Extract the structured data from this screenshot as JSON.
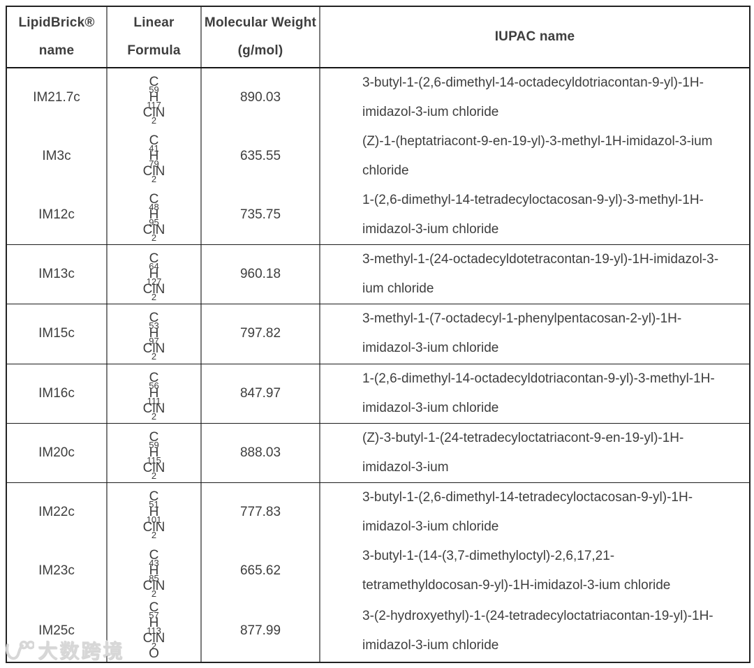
{
  "page": {
    "background": "#ffffff",
    "text_color": "#3e3e3e",
    "outer_border_color": "#222222",
    "separator_color": "#1c1c1c",
    "column_line_color": "#7b7b7b"
  },
  "table": {
    "headers": {
      "col1": {
        "line1": "LipidBrick®",
        "line2": "name"
      },
      "col2": {
        "line1": "Linear",
        "line2": "Formula"
      },
      "col3": {
        "line1": "Molecular Weight",
        "line2": "(g/mol)"
      },
      "col4": {
        "line1": "IUPAC name"
      }
    },
    "rows": [
      {
        "name": "IM21.7c",
        "formula": "C59H117ClN2",
        "mw": "890.03",
        "iupac_lines": [
          "3-butyl-1-(2,6-dimethyl-14-octadecyldotriacontan-9-yl)-1H-",
          "imidazol-3-ium chloride"
        ],
        "separator_above": false
      },
      {
        "name": "IM3c",
        "formula": "C41H79ClN2",
        "mw": "635.55",
        "iupac_lines": [
          "(Z)-1-(heptatriacont-9-en-19-yl)-3-methyl-1H-imidazol-3-ium",
          "chloride"
        ],
        "separator_above": false
      },
      {
        "name": "IM12c",
        "formula": "C48H95ClN2",
        "mw": "735.75",
        "iupac_lines": [
          "1-(2,6-dimethyl-14-tetradecyloctacosan-9-yl)-3-methyl-1H-",
          "imidazol-3-ium chloride"
        ],
        "separator_above": false
      },
      {
        "name": "IM13c",
        "formula": "C64H127ClN2",
        "mw": "960.18",
        "iupac_lines": [
          "3-methyl-1-(24-octadecyldotetracontan-19-yl)-1H-imidazol-3-",
          "ium chloride"
        ],
        "separator_above": true
      },
      {
        "name": "IM15c",
        "formula": "C53H97ClN2",
        "mw": "797.82",
        "iupac_lines": [
          "3-methyl-1-(7-octadecyl-1-phenylpentacosan-2-yl)-1H-",
          "imidazol-3-ium chloride"
        ],
        "separator_above": true
      },
      {
        "name": "IM16c",
        "formula": "C56H111ClN2",
        "mw": "847.97",
        "iupac_lines": [
          "1-(2,6-dimethyl-14-octadecyldotriacontan-9-yl)-3-methyl-1H-",
          "imidazol-3-ium chloride"
        ],
        "separator_above": true
      },
      {
        "name": "IM20c",
        "formula": "C59H115ClN2",
        "mw": "888.03",
        "iupac_lines": [
          "(Z)-3-butyl-1-(24-tetradecyloctatriacont-9-en-19-yl)-1H-",
          "imidazol-3-ium"
        ],
        "separator_above": true
      },
      {
        "name": "IM22c",
        "formula": "C51H101ClN2",
        "mw": "777.83",
        "iupac_lines": [
          "3-butyl-1-(2,6-dimethyl-14-tetradecyloctacosan-9-yl)-1H-",
          "imidazol-3-ium chloride"
        ],
        "separator_above": true
      },
      {
        "name": "IM23c",
        "formula": "C43H85ClN2",
        "mw": "665.62",
        "iupac_lines": [
          "3-butyl-1-(14-(3,7-dimethyloctyl)-2,6,17,21-",
          "tetramethyldocosan-9-yl)-1H-imidazol-3-ium chloride"
        ],
        "separator_above": false
      },
      {
        "name": "IM25c",
        "formula": "C57H113ClN2O",
        "mw": "877.99",
        "iupac_lines": [
          "3-(2-hydroxyethyl)-1-(24-tetradecyloctatriacontan-19-yl)-1H-",
          "imidazol-3-ium chloride"
        ],
        "separator_above": false
      }
    ]
  },
  "watermark": {
    "icon": "10100-swoosh-logo",
    "text": "大数跨境"
  }
}
